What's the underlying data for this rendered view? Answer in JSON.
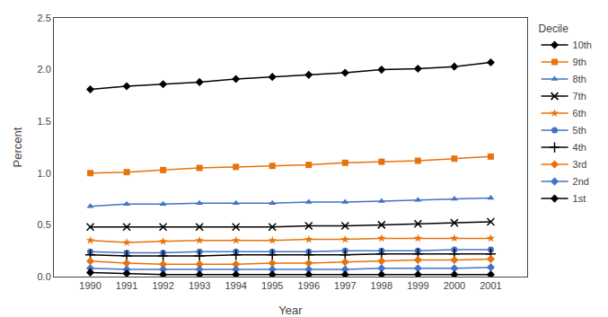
{
  "chart_data": {
    "type": "line",
    "x": [
      1990,
      1991,
      1992,
      1993,
      1994,
      1995,
      1996,
      1997,
      1998,
      1999,
      2000,
      2001
    ],
    "xlabel": "Year",
    "ylabel": "Percent",
    "legend_title": "Decile",
    "xlim": [
      1989,
      2002
    ],
    "xticks": [
      1990,
      1991,
      1992,
      1993,
      1994,
      1995,
      1996,
      1997,
      1998,
      1999,
      2000,
      2001
    ],
    "ylim": [
      0,
      2.5
    ],
    "yticks": [
      {
        "value": 0,
        "label": "0.0"
      },
      0.5,
      {
        "value": 1,
        "label": "1.0"
      },
      1.5,
      {
        "value": 2,
        "label": "2.0"
      },
      2.5
    ],
    "grid": false,
    "legend": "right",
    "series": [
      {
        "name": "10th",
        "color": "#000000",
        "marker": "diamond",
        "line_style": "solid",
        "values": [
          1.81,
          1.84,
          1.86,
          1.88,
          1.91,
          1.93,
          1.95,
          1.97,
          2.0,
          2.01,
          2.03,
          2.07
        ]
      },
      {
        "name": "9th",
        "color": "#E8720C",
        "marker": "square",
        "line_style": "solid",
        "values": [
          1.0,
          1.01,
          1.03,
          1.05,
          1.06,
          1.07,
          1.08,
          1.1,
          1.11,
          1.12,
          1.14,
          1.16
        ]
      },
      {
        "name": "8th",
        "color": "#4472C4",
        "marker": "triangle-up",
        "line_style": "solid",
        "values": [
          0.68,
          0.7,
          0.7,
          0.71,
          0.71,
          0.71,
          0.72,
          0.72,
          0.73,
          0.74,
          0.75,
          0.76
        ]
      },
      {
        "name": "7th",
        "color": "#000000",
        "marker": "x",
        "line_style": "solid",
        "values": [
          0.48,
          0.48,
          0.48,
          0.48,
          0.48,
          0.48,
          0.49,
          0.49,
          0.5,
          0.51,
          0.52,
          0.53
        ]
      },
      {
        "name": "6th",
        "color": "#E8720C",
        "marker": "star",
        "line_style": "solid",
        "values": [
          0.35,
          0.33,
          0.34,
          0.35,
          0.35,
          0.35,
          0.36,
          0.36,
          0.37,
          0.37,
          0.37,
          0.37
        ]
      },
      {
        "name": "5th",
        "color": "#4472C4",
        "marker": "circle",
        "line_style": "solid",
        "values": [
          0.24,
          0.23,
          0.23,
          0.24,
          0.24,
          0.24,
          0.24,
          0.25,
          0.25,
          0.25,
          0.26,
          0.26
        ]
      },
      {
        "name": "4th",
        "color": "#000000",
        "marker": "plus",
        "line_style": "solid",
        "values": [
          0.21,
          0.2,
          0.2,
          0.2,
          0.21,
          0.21,
          0.21,
          0.21,
          0.22,
          0.22,
          0.22,
          0.22
        ]
      },
      {
        "name": "3rd",
        "color": "#E8720C",
        "marker": "diamond",
        "line_style": "solid",
        "values": [
          0.15,
          0.13,
          0.12,
          0.12,
          0.12,
          0.13,
          0.13,
          0.14,
          0.15,
          0.16,
          0.16,
          0.17
        ]
      },
      {
        "name": "2nd",
        "color": "#4472C4",
        "marker": "diamond",
        "line_style": "solid",
        "values": [
          0.08,
          0.07,
          0.07,
          0.07,
          0.07,
          0.07,
          0.07,
          0.07,
          0.08,
          0.08,
          0.08,
          0.09
        ]
      },
      {
        "name": "1st",
        "color": "#000000",
        "marker": "diamond",
        "line_style": "solid",
        "values": [
          0.04,
          0.03,
          0.02,
          0.02,
          0.02,
          0.02,
          0.02,
          0.02,
          0.02,
          0.02,
          0.02,
          0.02
        ]
      }
    ]
  }
}
